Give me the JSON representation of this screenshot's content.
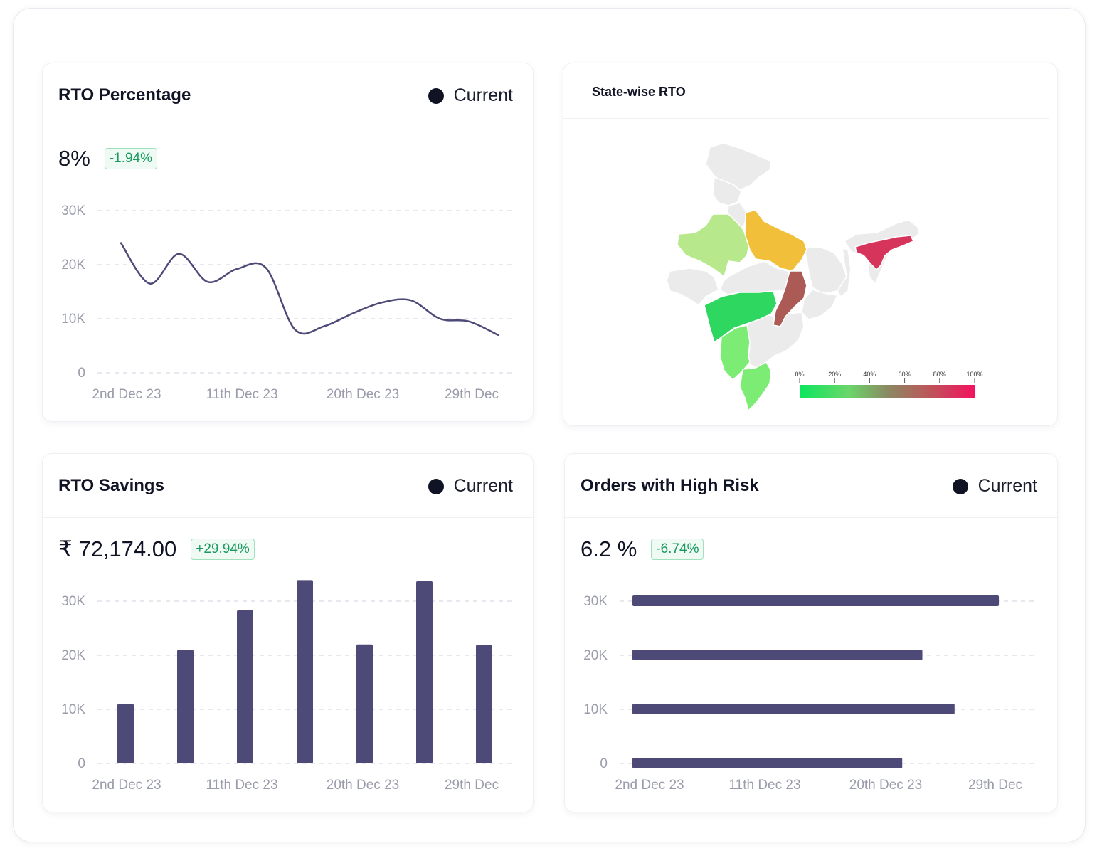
{
  "colors": {
    "series": "#4d4a78",
    "grid": "#dadce3",
    "axis_text": "#9a9cab",
    "positive_badge": "#1a9a5f",
    "map_base": "#ebebeb"
  },
  "rto_percentage": {
    "title": "RTO Percentage",
    "legend": "Current",
    "value": "8%",
    "change": "-1.94%"
  },
  "state_rto": {
    "title": "State-wise RTO",
    "scale": [
      "0%",
      "20%",
      "40%",
      "60%",
      "80%",
      "100%"
    ],
    "states": [
      {
        "name": "Rajasthan",
        "rto_pct": 20,
        "color": "#b7e98c"
      },
      {
        "name": "Uttar Pradesh",
        "rto_pct": 50,
        "color": "#f2bf3a"
      },
      {
        "name": "Chhattisgarh",
        "rto_pct": 75,
        "color": "#ab5a55"
      },
      {
        "name": "Maharashtra",
        "rto_pct": 5,
        "color": "#2ed860"
      },
      {
        "name": "Karnataka",
        "rto_pct": 12,
        "color": "#7cec74"
      },
      {
        "name": "Tamil Nadu",
        "rto_pct": 12,
        "color": "#7cec74"
      },
      {
        "name": "Assam",
        "rto_pct": 95,
        "color": "#d6345a"
      }
    ]
  },
  "rto_savings": {
    "title": "RTO Savings",
    "legend": "Current",
    "value": "₹ 72,174.00",
    "change": "+29.94%"
  },
  "high_risk": {
    "title": "Orders with High Risk",
    "legend": "Current",
    "value": "6.2 %",
    "change": "-6.74%"
  },
  "chart_data": [
    {
      "type": "line",
      "title": "RTO Percentage",
      "ytick_labels": [
        "0",
        "10K",
        "20K",
        "30K"
      ],
      "xtick_labels": [
        "2nd Dec 23",
        "11th Dec 23",
        "20th Dec 23",
        "29th Dec"
      ],
      "ylim": [
        0,
        30000
      ],
      "x": [
        0,
        1,
        2,
        3,
        4,
        5,
        6,
        7,
        8,
        9,
        10,
        11,
        12,
        13
      ],
      "values": [
        24000,
        16500,
        22000,
        16800,
        19200,
        19400,
        8000,
        8600,
        11000,
        13000,
        13400,
        10000,
        9500,
        7000
      ],
      "series_name": "Current"
    },
    {
      "type": "bar",
      "title": "RTO Savings",
      "ytick_labels": [
        "0",
        "10K",
        "20K",
        "30K"
      ],
      "xtick_labels": [
        "2nd Dec 23",
        "11th Dec 23",
        "20th Dec 23",
        "29th Dec"
      ],
      "ylim": [
        0,
        30000
      ],
      "values": [
        11000,
        21000,
        28300,
        33900,
        22000,
        33700,
        21900
      ],
      "series_name": "Current"
    },
    {
      "type": "bar",
      "orientation": "horizontal",
      "title": "Orders with High Risk",
      "ytick_labels": [
        "0",
        "10K",
        "20K",
        "30K"
      ],
      "xtick_labels": [
        "2nd Dec 23",
        "11th Dec 23",
        "20th Dec 23",
        "29th Dec"
      ],
      "categories": [
        "30K",
        "20K",
        "10K",
        "0"
      ],
      "values": [
        91,
        72,
        80,
        67
      ],
      "value_unit": "% of plot width",
      "series_name": "Current"
    }
  ]
}
